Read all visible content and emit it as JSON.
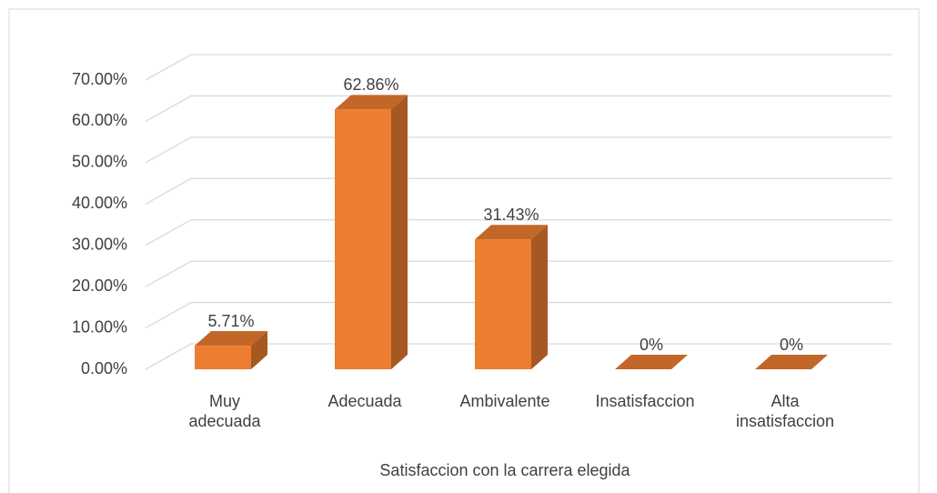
{
  "chart_data": {
    "type": "bar3d",
    "x_axis_label": "Satisfaccion con la carrera elegida",
    "categories": [
      "Muy\nadecuada",
      "Adecuada",
      "Ambivalente",
      "Insatisfaccion",
      "Alta\ninsatisfaccion"
    ],
    "values": [
      5.71,
      62.86,
      31.43,
      0,
      0
    ],
    "value_labels": [
      "5.71%",
      "62.86%",
      "31.43%",
      "0%",
      "0%"
    ],
    "color": "#ed7d31",
    "ylim": [
      0,
      70
    ],
    "yticks": [
      {
        "value": 0,
        "label": "0.00%"
      },
      {
        "value": 10,
        "label": "10.00%"
      },
      {
        "value": 20,
        "label": "20.00%"
      },
      {
        "value": 30,
        "label": "30.00%"
      },
      {
        "value": 40,
        "label": "40.00%"
      },
      {
        "value": 50,
        "label": "50.00%"
      },
      {
        "value": 60,
        "label": "60.00%"
      },
      {
        "value": 70,
        "label": "70.00%"
      }
    ],
    "grid": true
  }
}
